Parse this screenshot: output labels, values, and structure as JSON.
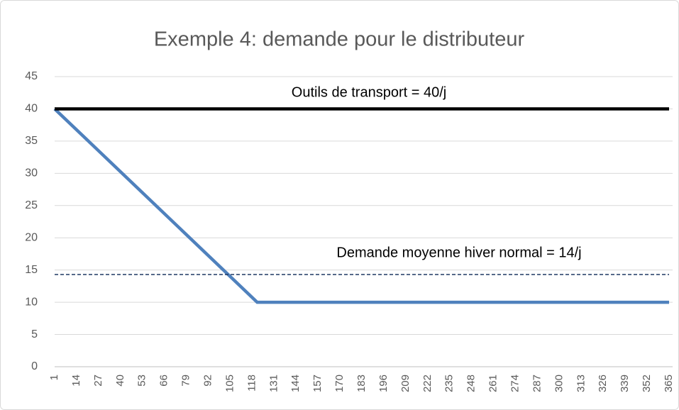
{
  "chart_data": {
    "type": "line",
    "title": "Exemple 4: demande pour le distributeur",
    "annotations": [
      "Outils de transport = 40/j",
      "Demande moyenne hiver normal = 14/j"
    ],
    "xlim": [
      1,
      365
    ],
    "xticks": [
      1,
      14,
      27,
      40,
      53,
      66,
      79,
      92,
      105,
      118,
      131,
      144,
      157,
      170,
      183,
      196,
      209,
      222,
      235,
      248,
      261,
      274,
      287,
      300,
      313,
      326,
      339,
      352,
      365
    ],
    "ylim": [
      0,
      45
    ],
    "yticks": [
      0,
      5,
      10,
      15,
      20,
      25,
      30,
      35,
      40,
      45
    ],
    "grid": true,
    "series": [
      {
        "color": "#4f81bd",
        "x": [
          1,
          121,
          365
        ],
        "values": [
          40,
          10,
          10
        ]
      },
      {
        "color": "#000000",
        "x": [
          1,
          365
        ],
        "values": [
          40,
          40
        ]
      },
      {
        "color": "#1f3864",
        "dashed": true,
        "x": [
          1,
          365
        ],
        "values": [
          14.3,
          14.3
        ]
      }
    ]
  }
}
